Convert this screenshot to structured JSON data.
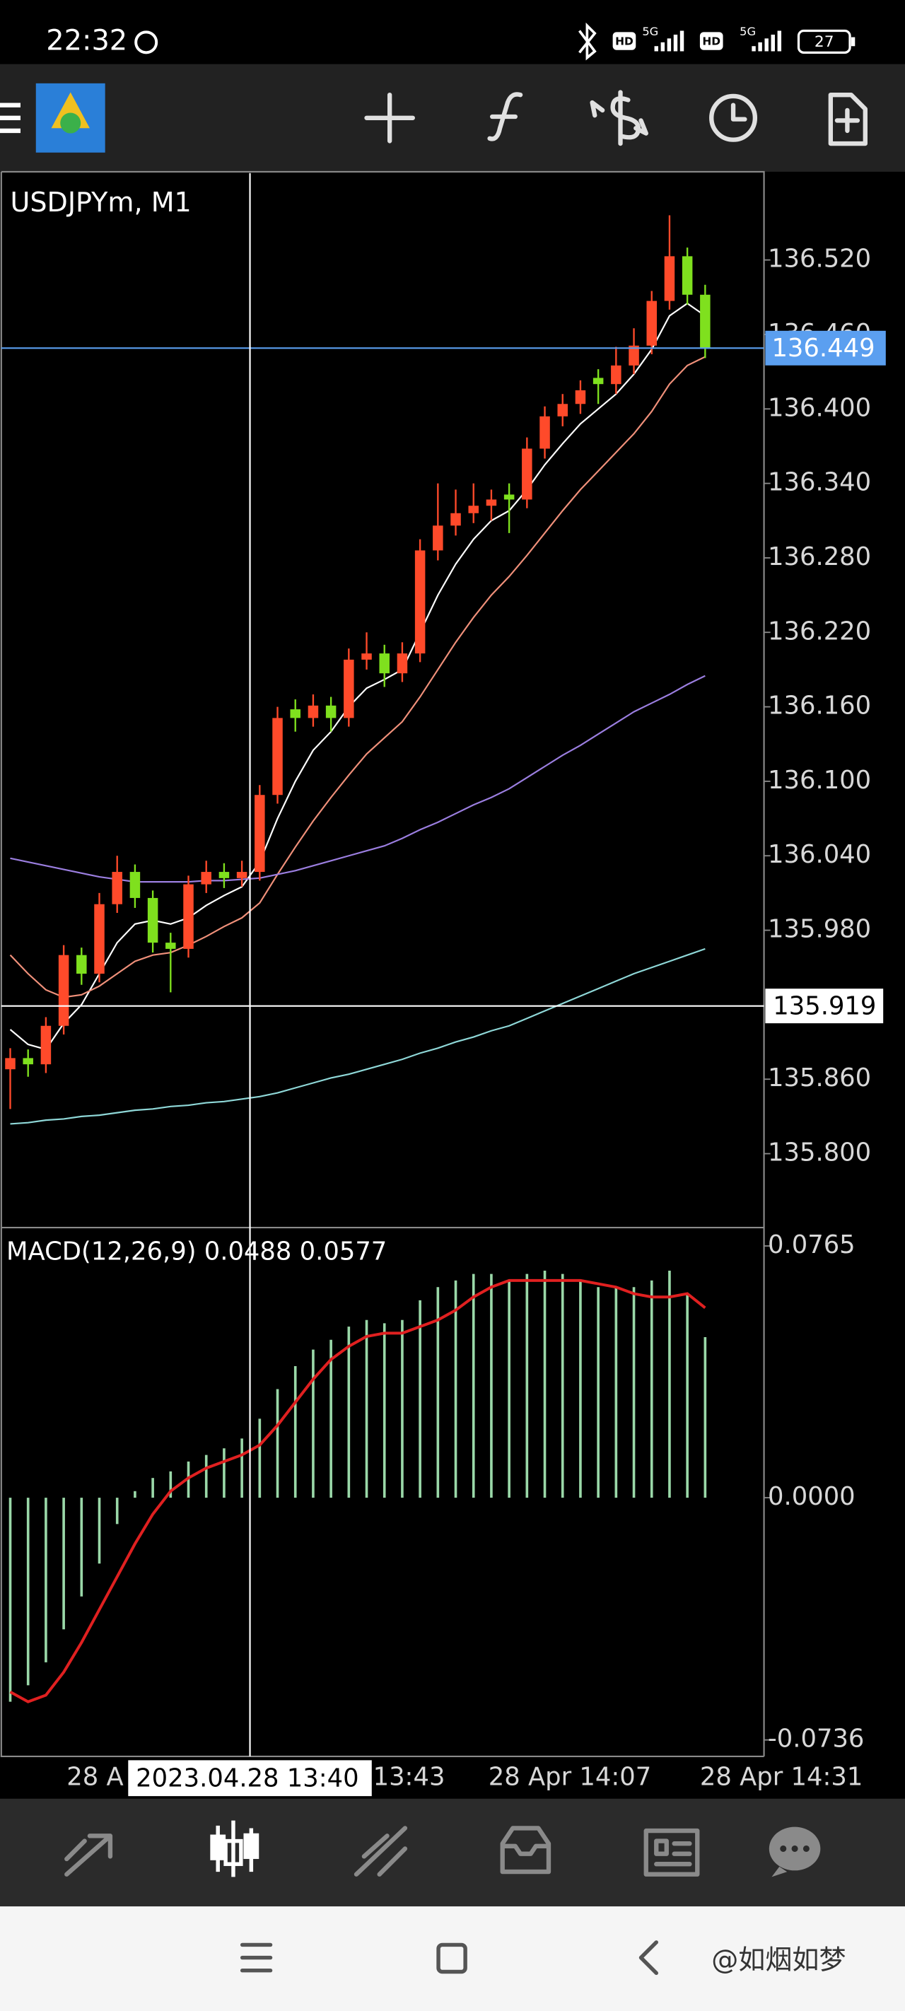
{
  "status_bar": {
    "time": "22:32",
    "network_labels": [
      "HD",
      "5G",
      "HD",
      "5G"
    ],
    "battery": "27"
  },
  "time_axis": {
    "labels": [
      "28 A",
      "13:43",
      "28 Apr 14:07",
      "28 Apr 14:31"
    ],
    "crosshair_label": "2023.04.28 13:40"
  },
  "watermark": "@如烟如梦",
  "chart_data": [
    {
      "type": "candlestick",
      "title": "USDJPYm, M1",
      "up_color": "#ff4a2a",
      "down_color": "#7fe01e",
      "open": [
        135.868,
        135.877,
        135.872,
        135.903,
        135.96,
        135.945,
        136.001,
        136.027,
        136.006,
        135.97,
        135.965,
        136.017,
        136.027,
        136.022,
        136.027,
        136.089,
        136.158,
        136.151,
        136.161,
        136.151,
        136.198,
        136.203,
        136.187,
        136.203,
        136.286,
        136.306,
        136.316,
        136.322,
        136.331,
        136.327,
        136.368,
        136.394,
        136.404,
        136.425,
        136.42,
        136.435,
        136.451,
        136.487,
        136.523,
        136.492
      ],
      "high": [
        135.885,
        135.884,
        135.91,
        135.968,
        135.966,
        136.01,
        136.04,
        136.033,
        136.012,
        135.978,
        136.024,
        136.036,
        136.034,
        136.036,
        136.097,
        136.16,
        136.166,
        136.17,
        136.168,
        136.207,
        136.22,
        136.21,
        136.212,
        136.295,
        136.34,
        136.335,
        136.34,
        136.335,
        136.34,
        136.377,
        136.402,
        136.412,
        136.423,
        136.432,
        136.45,
        136.465,
        136.495,
        136.556,
        136.53,
        136.5
      ],
      "low": [
        135.836,
        135.862,
        135.865,
        135.896,
        135.936,
        135.938,
        135.994,
        135.998,
        135.962,
        135.93,
        135.958,
        136.01,
        136.014,
        136.015,
        136.02,
        136.082,
        136.14,
        136.144,
        136.14,
        136.144,
        136.19,
        136.176,
        136.18,
        136.196,
        136.278,
        136.298,
        136.308,
        136.31,
        136.3,
        136.32,
        136.36,
        136.386,
        136.396,
        136.404,
        136.412,
        136.428,
        136.444,
        136.48,
        136.484,
        136.441
      ],
      "close": [
        135.877,
        135.872,
        135.903,
        135.96,
        135.945,
        136.001,
        136.027,
        136.006,
        135.97,
        135.965,
        136.017,
        136.027,
        136.022,
        136.027,
        136.089,
        136.151,
        136.151,
        136.161,
        136.151,
        136.198,
        136.203,
        136.187,
        136.203,
        136.286,
        136.306,
        136.316,
        136.322,
        136.327,
        136.327,
        136.368,
        136.394,
        136.404,
        136.415,
        136.42,
        136.435,
        136.451,
        136.487,
        136.523,
        136.492,
        136.449
      ],
      "series": [
        {
          "color": "#ffffff",
          "values": [
            135.9,
            135.888,
            135.884,
            135.905,
            135.92,
            135.945,
            135.97,
            135.985,
            135.988,
            135.985,
            135.99,
            136.0,
            136.008,
            136.015,
            136.035,
            136.07,
            136.1,
            136.125,
            136.14,
            136.16,
            136.175,
            136.182,
            136.19,
            136.22,
            136.25,
            136.275,
            136.295,
            136.31,
            136.318,
            136.335,
            136.355,
            136.372,
            136.388,
            136.4,
            136.412,
            136.428,
            136.448,
            136.475,
            136.485,
            136.475
          ]
        },
        {
          "color": "#f0907a",
          "values": [
            135.96,
            135.945,
            135.932,
            135.926,
            135.928,
            135.935,
            135.945,
            135.955,
            135.96,
            135.962,
            135.968,
            135.975,
            135.983,
            135.99,
            136.002,
            136.025,
            136.047,
            136.068,
            136.087,
            136.105,
            136.122,
            136.135,
            136.148,
            136.168,
            136.19,
            136.212,
            136.232,
            136.25,
            136.265,
            136.282,
            136.3,
            136.318,
            136.335,
            136.35,
            136.365,
            136.38,
            136.398,
            136.42,
            136.435,
            136.442
          ]
        },
        {
          "color": "#9b7ee0",
          "values": [
            136.038,
            136.035,
            136.032,
            136.029,
            136.026,
            136.023,
            136.021,
            136.019,
            136.019,
            136.019,
            136.019,
            136.02,
            136.02,
            136.021,
            136.022,
            136.025,
            136.028,
            136.032,
            136.036,
            136.04,
            136.044,
            136.048,
            136.054,
            136.061,
            136.067,
            136.074,
            136.081,
            136.087,
            136.094,
            136.103,
            136.112,
            136.121,
            136.129,
            136.138,
            136.147,
            136.156,
            136.163,
            136.17,
            136.178,
            136.185
          ]
        },
        {
          "color": "#8fd8d8",
          "values": [
            135.824,
            135.825,
            135.827,
            135.828,
            135.83,
            135.831,
            135.833,
            135.835,
            135.836,
            135.838,
            135.839,
            135.841,
            135.842,
            135.844,
            135.846,
            135.849,
            135.853,
            135.857,
            135.861,
            135.864,
            135.868,
            135.872,
            135.876,
            135.881,
            135.885,
            135.89,
            135.894,
            135.899,
            135.903,
            135.909,
            135.915,
            135.921,
            135.927,
            135.933,
            135.939,
            135.945,
            135.95,
            135.955,
            135.96,
            135.965
          ]
        }
      ],
      "ylim": [
        135.741,
        136.59
      ],
      "yticks": [
        {
          "value": 136.52,
          "label": "136.520"
        },
        {
          "value": 136.46,
          "label": "136.460"
        },
        {
          "value": 136.4,
          "label": "136.400"
        },
        {
          "value": 136.34,
          "label": "136.340"
        },
        {
          "value": 136.28,
          "label": "136.280"
        },
        {
          "value": 136.22,
          "label": "136.220"
        },
        {
          "value": 136.16,
          "label": "136.160"
        },
        {
          "value": 136.1,
          "label": "136.100"
        },
        {
          "value": 136.04,
          "label": "136.040"
        },
        {
          "value": 135.98,
          "label": "135.980"
        },
        {
          "value": 135.86,
          "label": "135.860"
        },
        {
          "value": 135.8,
          "label": "135.800"
        }
      ],
      "current_price": 136.449,
      "current_price_color": "#5b9ff0",
      "crosshair_price": 135.919
    },
    {
      "type": "macd",
      "title": "MACD(12,26,9) 0.0488 0.0577",
      "histogram_color": "#9ad8a8",
      "values": [
        -0.062,
        -0.057,
        -0.05,
        -0.04,
        -0.03,
        -0.02,
        -0.008,
        0.002,
        0.006,
        0.008,
        0.011,
        0.013,
        0.015,
        0.018,
        0.024,
        0.033,
        0.04,
        0.045,
        0.048,
        0.052,
        0.054,
        0.053,
        0.054,
        0.06,
        0.064,
        0.066,
        0.068,
        0.068,
        0.066,
        0.068,
        0.069,
        0.068,
        0.066,
        0.064,
        0.064,
        0.064,
        0.066,
        0.069,
        0.062,
        0.0488
      ],
      "series": [
        {
          "color": "#e02020",
          "values": [
            -0.059,
            -0.062,
            -0.06,
            -0.053,
            -0.044,
            -0.034,
            -0.024,
            -0.014,
            -0.005,
            0.002,
            0.006,
            0.009,
            0.011,
            0.013,
            0.016,
            0.022,
            0.029,
            0.036,
            0.042,
            0.046,
            0.049,
            0.05,
            0.05,
            0.052,
            0.054,
            0.057,
            0.061,
            0.064,
            0.066,
            0.066,
            0.066,
            0.066,
            0.066,
            0.065,
            0.064,
            0.062,
            0.061,
            0.061,
            0.062,
            0.0577
          ]
        }
      ],
      "ylim": [
        -0.0786,
        0.0819
      ],
      "yticks": [
        0.0765,
        {
          "value": 0,
          "label": "0.0000"
        },
        -0.0736
      ]
    }
  ]
}
